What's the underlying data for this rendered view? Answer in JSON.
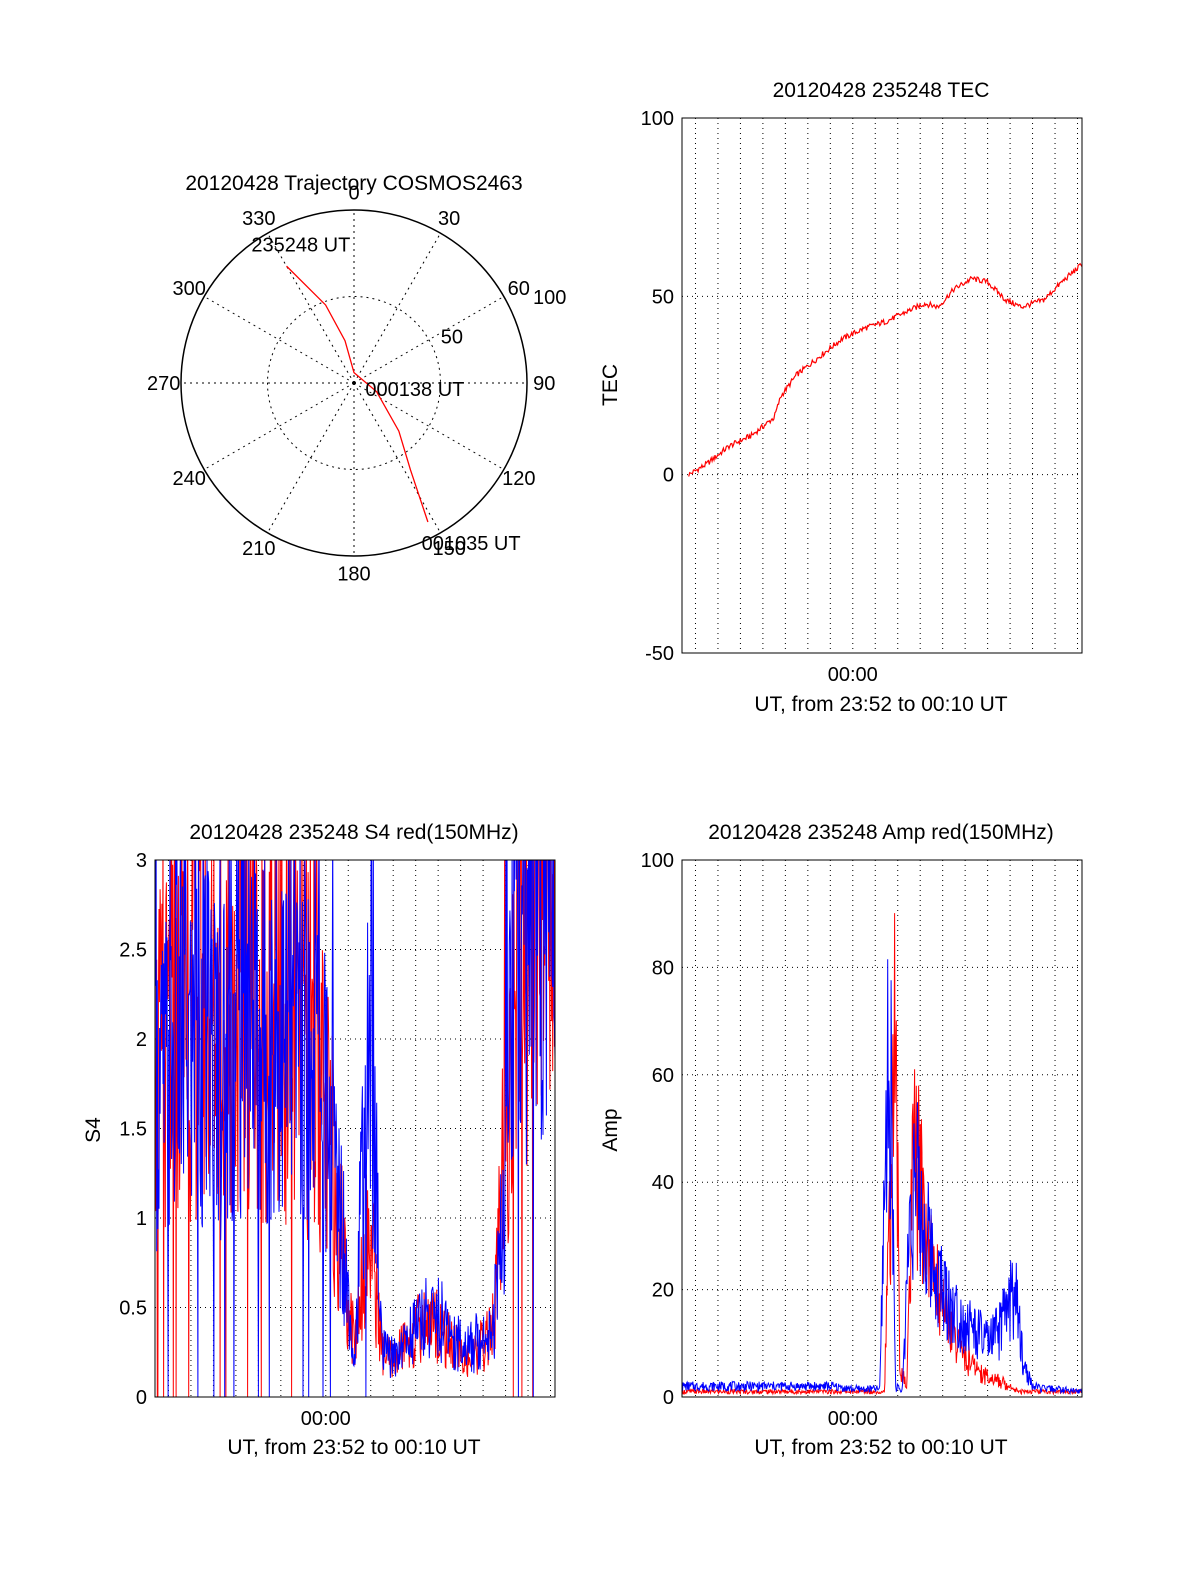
{
  "colors": {
    "red": "#ff0000",
    "blue": "#0000ff",
    "axis": "#000000",
    "grid": "#000000",
    "background": "#ffffff"
  },
  "chart_data": [
    {
      "type": "polar",
      "title": "20120428 Trajectory COSMOS2463",
      "azimuth_ticks": [
        "0",
        "30",
        "60",
        "90",
        "120",
        "150",
        "180",
        "210",
        "240",
        "270",
        "300",
        "330"
      ],
      "radial_ticks": [
        "50",
        "100"
      ],
      "radial_range": [
        0,
        100
      ],
      "grid": true,
      "trajectory": {
        "color": "red",
        "points": [
          {
            "az": 330,
            "r": 78
          },
          {
            "az": 340,
            "r": 48
          },
          {
            "az": 348,
            "r": 25
          },
          {
            "az": 0,
            "r": 6
          },
          {
            "az": 111,
            "r": 14
          },
          {
            "az": 137,
            "r": 38
          },
          {
            "az": 147,
            "r": 60
          },
          {
            "az": 152,
            "r": 91
          }
        ],
        "labels": [
          {
            "text": "235248 UT",
            "az": 338,
            "r": 82
          },
          {
            "text": "000138 UT",
            "az": 102,
            "r": 36
          },
          {
            "text": "001035 UT",
            "az": 145,
            "r": 118
          }
        ]
      }
    },
    {
      "type": "line",
      "title": "20120428 235248 TEC",
      "xlabel": "UT, from 23:52 to 00:10 UT",
      "ylabel": "TEC",
      "xlim": [
        -7.6,
        10.2
      ],
      "ylim": [
        -50,
        100
      ],
      "x_ticks": [
        {
          "x": 0,
          "label": "00:00"
        }
      ],
      "y_ticks": [
        "-50",
        "0",
        "50",
        "100"
      ],
      "grid": true,
      "series": [
        {
          "color": "red",
          "x": [
            -7.3,
            -6.5,
            -5.5,
            -4.5,
            -3.5,
            -3.2,
            -2.5,
            -1.5,
            -0.5,
            0.5,
            1.5,
            2.5,
            3.2,
            3.8,
            4.5,
            5.3,
            6.0,
            6.8,
            7.5,
            8.5,
            9.3,
            10.2
          ],
          "values": [
            0,
            3,
            8,
            11,
            16,
            22,
            28,
            33,
            38,
            41,
            43,
            46,
            48,
            47,
            52,
            55,
            54,
            49,
            47,
            49,
            54,
            59
          ]
        }
      ]
    },
    {
      "type": "line",
      "title": "20120428 235248 S4 red(150MHz)",
      "xlabel": "UT, from 23:52 to 00:10 UT",
      "ylabel": "S4",
      "xlim": [
        -7.6,
        10.2
      ],
      "ylim": [
        0,
        3
      ],
      "x_ticks": [
        {
          "x": 0,
          "label": "00:00"
        }
      ],
      "y_ticks": [
        "0",
        "0.5",
        "1",
        "1.5",
        "2",
        "2.5",
        "3"
      ],
      "grid": true,
      "series": [
        {
          "color": "red",
          "x": [
            -7.6,
            -6.5,
            -5.5,
            -4.5,
            -3.5,
            -2.5,
            -1.5,
            -0.5,
            0.2,
            0.7,
            1.0,
            1.3,
            1.7,
            2.0,
            2.5,
            3.0,
            3.5,
            4.0,
            4.5,
            5.0,
            5.5,
            6.0,
            6.5,
            7.0,
            7.5,
            8.0,
            8.5,
            9.0,
            9.5,
            10.2
          ],
          "values": [
            1.8,
            2.1,
            2.2,
            2.0,
            2.3,
            2.1,
            2.0,
            1.9,
            1.4,
            0.9,
            0.5,
            0.3,
            0.8,
            0.9,
            0.25,
            0.2,
            0.3,
            0.35,
            0.45,
            0.4,
            0.3,
            0.25,
            0.2,
            0.3,
            0.4,
            1.5,
            2.5,
            2.7,
            2.9,
            2.8
          ]
        },
        {
          "color": "blue",
          "x": [
            -7.6,
            -6.5,
            -5.5,
            -4.5,
            -3.5,
            -2.5,
            -1.5,
            -0.5,
            0.2,
            0.7,
            1.0,
            1.3,
            1.7,
            2.0,
            2.5,
            3.0,
            3.5,
            4.0,
            4.5,
            5.0,
            5.5,
            6.0,
            6.5,
            7.0,
            7.5,
            8.0,
            8.5,
            9.0,
            9.5,
            10.2
          ],
          "values": [
            1.7,
            1.9,
            2.0,
            1.9,
            2.1,
            2.0,
            2.0,
            2.0,
            1.5,
            1.0,
            0.6,
            0.2,
            1.5,
            2.0,
            0.25,
            0.22,
            0.3,
            0.4,
            0.45,
            0.45,
            0.35,
            0.3,
            0.28,
            0.35,
            0.45,
            1.2,
            2.8,
            2.6,
            2.8,
            2.5
          ]
        }
      ]
    },
    {
      "type": "line",
      "title": "20120428 235248 Amp red(150MHz)",
      "xlabel": "UT, from 23:52 to 00:10 UT",
      "ylabel": "Amp",
      "xlim": [
        -7.6,
        10.2
      ],
      "ylim": [
        0,
        100
      ],
      "x_ticks": [
        {
          "x": 0,
          "label": "00:00"
        }
      ],
      "y_ticks": [
        "0",
        "20",
        "40",
        "60",
        "80",
        "100"
      ],
      "grid": true,
      "series": [
        {
          "color": "red",
          "x": [
            -7.6,
            -5,
            -2,
            0,
            1.4,
            1.7,
            1.9,
            2.1,
            2.4,
            2.7,
            3.0,
            3.3,
            3.7,
            4.2,
            4.7,
            5.3,
            5.9,
            6.5,
            7.0,
            7.5,
            8.0,
            9.0,
            10.2
          ],
          "values": [
            1,
            1,
            1,
            1,
            1,
            40,
            70,
            5,
            2,
            44,
            40,
            30,
            22,
            15,
            10,
            6,
            4,
            3,
            2,
            1,
            1,
            1,
            1
          ]
        },
        {
          "color": "blue",
          "x": [
            -7.6,
            -6.5,
            -5,
            -3.5,
            -2,
            -1,
            0,
            1.2,
            1.5,
            1.7,
            1.9,
            2.2,
            2.6,
            2.9,
            3.2,
            3.6,
            4.0,
            4.5,
            5.0,
            5.5,
            6.0,
            6.5,
            7.2,
            7.6,
            8.0,
            8.5,
            9.0,
            10.2
          ],
          "values": [
            2,
            2,
            2,
            2,
            2,
            2,
            1.5,
            1.5,
            55,
            60,
            2,
            1,
            40,
            38,
            30,
            25,
            20,
            16,
            14,
            12,
            10,
            12,
            20,
            6,
            2,
            1.5,
            1.5,
            1
          ]
        }
      ]
    }
  ]
}
